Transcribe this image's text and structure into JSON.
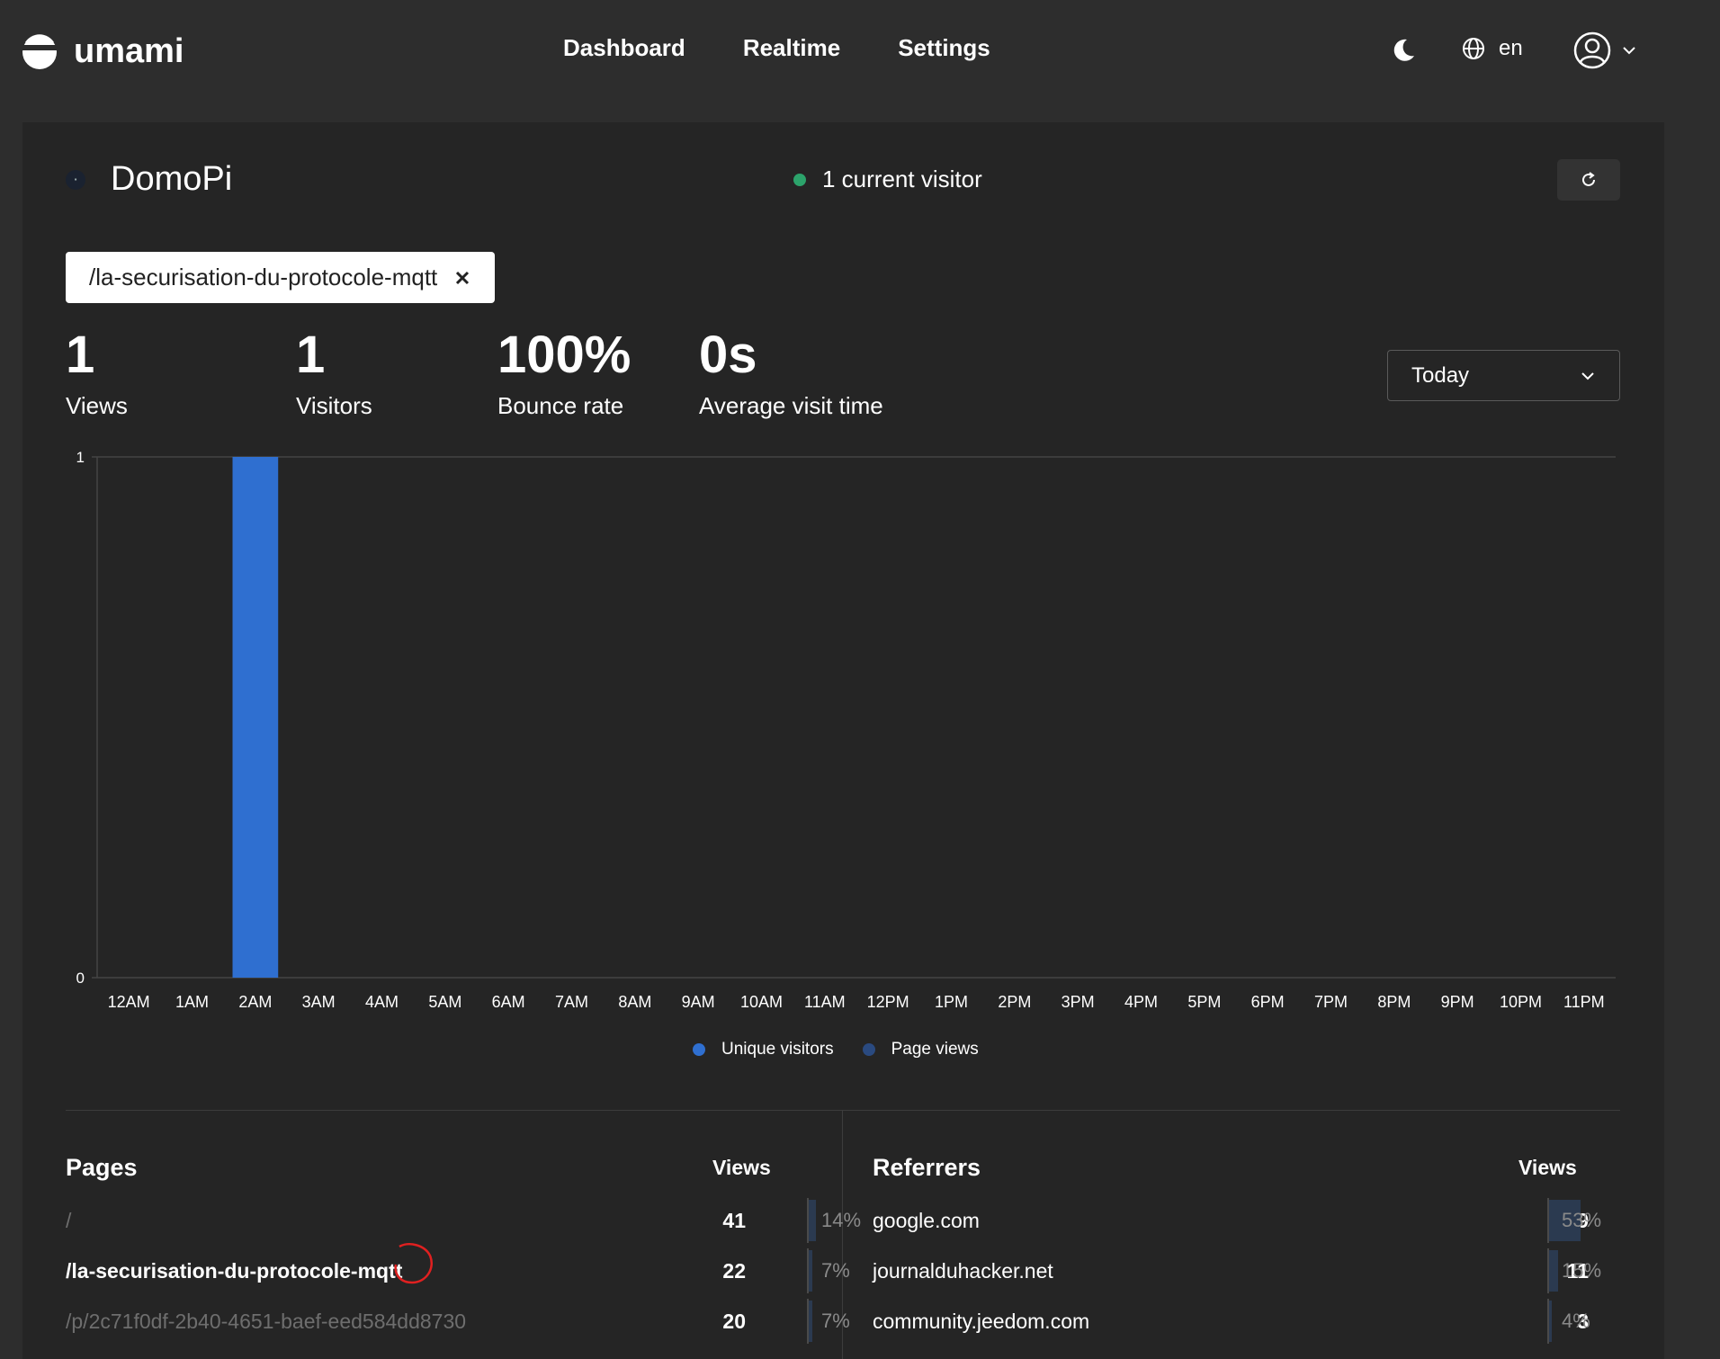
{
  "app": {
    "name": "umami"
  },
  "nav": {
    "dashboard": "Dashboard",
    "realtime": "Realtime",
    "settings": "Settings"
  },
  "language": {
    "code": "en"
  },
  "site": {
    "name": "DomoPi"
  },
  "status": {
    "current_visitors": "1 current visitor",
    "indicator_color": "#2ca36b"
  },
  "filter": {
    "path": "/la-securisation-du-protocole-mqtt"
  },
  "metrics": {
    "views": {
      "value": "1",
      "label": "Views"
    },
    "visitors": {
      "value": "1",
      "label": "Visitors"
    },
    "bounce": {
      "value": "100%",
      "label": "Bounce rate"
    },
    "visit_time": {
      "value": "0s",
      "label": "Average visit time"
    }
  },
  "date_range": {
    "selected": "Today"
  },
  "chart_data": {
    "type": "bar",
    "categories": [
      "12AM",
      "1AM",
      "2AM",
      "3AM",
      "4AM",
      "5AM",
      "6AM",
      "7AM",
      "8AM",
      "9AM",
      "10AM",
      "11AM",
      "12PM",
      "1PM",
      "2PM",
      "3PM",
      "4PM",
      "5PM",
      "6PM",
      "7PM",
      "8PM",
      "9PM",
      "10PM",
      "11PM"
    ],
    "series": [
      {
        "name": "Unique visitors",
        "color": "#2f6fd0",
        "values": [
          0,
          0,
          1,
          0,
          0,
          0,
          0,
          0,
          0,
          0,
          0,
          0,
          0,
          0,
          0,
          0,
          0,
          0,
          0,
          0,
          0,
          0,
          0,
          0
        ]
      },
      {
        "name": "Page views",
        "color": "#2a4a80",
        "values": [
          0,
          0,
          1,
          0,
          0,
          0,
          0,
          0,
          0,
          0,
          0,
          0,
          0,
          0,
          0,
          0,
          0,
          0,
          0,
          0,
          0,
          0,
          0,
          0
        ]
      }
    ],
    "ylim": [
      0,
      1
    ],
    "y_ticks": [
      "0",
      "1"
    ],
    "legend": "bottom-center",
    "grid": true
  },
  "pages": {
    "title": "Pages",
    "column": "Views",
    "rows": [
      {
        "label": "/",
        "views": "41",
        "pct": "14%",
        "fraction": 0.14,
        "style": "muted"
      },
      {
        "label": "/la-securisation-du-protocole-mqtt",
        "views": "22",
        "pct": "7%",
        "fraction": 0.07,
        "style": "bold"
      },
      {
        "label": "/p/2c71f0df-2b40-4651-baef-eed584dd8730",
        "views": "20",
        "pct": "7%",
        "fraction": 0.07,
        "style": "muted"
      }
    ]
  },
  "referrers": {
    "title": "Referrers",
    "column": "Views",
    "rows": [
      {
        "label": "google.com",
        "views": "39",
        "pct": "53%",
        "fraction": 0.53
      },
      {
        "label": "journalduhacker.net",
        "views": "11",
        "pct": "15%",
        "fraction": 0.15
      },
      {
        "label": "community.jeedom.com",
        "views": "3",
        "pct": "4%",
        "fraction": 0.04
      }
    ]
  }
}
